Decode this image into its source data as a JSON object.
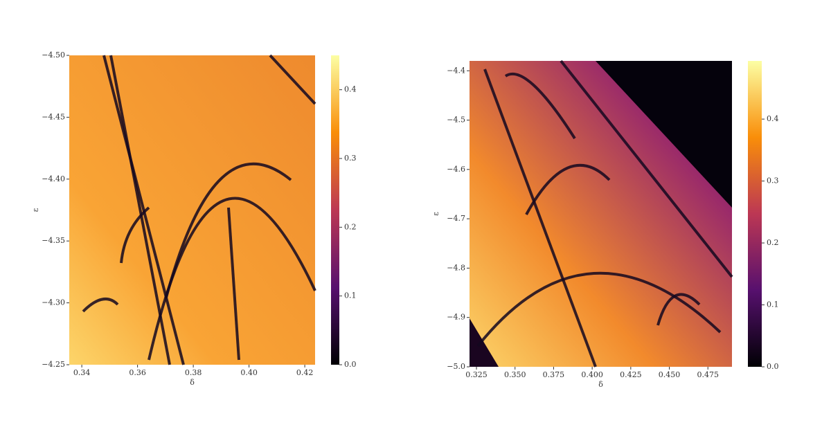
{
  "chart_data": [
    {
      "type": "heatmap",
      "xlabel": "δ",
      "ylabel": "ε",
      "colormap": "inferno",
      "xlim": [
        0.3355,
        0.4237
      ],
      "ylim": [
        -4.25,
        -4.5
      ],
      "xticks": [
        0.34,
        0.36,
        0.38,
        {
          "value": 0.4,
          "label": "0.40"
        },
        0.42
      ],
      "yticks": [
        {
          "value": -4.5,
          "label": "−4.50"
        },
        {
          "value": -4.45,
          "label": "−4.45"
        },
        {
          "value": -4.4,
          "label": "−4.40"
        },
        {
          "value": -4.35,
          "label": "−4.35"
        },
        {
          "value": -4.3,
          "label": "−4.30"
        },
        {
          "value": -4.25,
          "label": "−4.25"
        }
      ],
      "clim": [
        0,
        0.45
      ],
      "cticks": [
        {
          "value": 0,
          "label": "0.0"
        },
        0.1,
        0.2,
        0.3,
        0.4
      ]
    },
    {
      "type": "heatmap",
      "xlabel": "δ",
      "ylabel": "ε",
      "colormap": "inferno",
      "xlim": [
        0.3205,
        0.4906
      ],
      "ylim": [
        -5.0,
        -4.38
      ],
      "xticks": [
        0.325,
        {
          "value": 0.35,
          "label": "0.350"
        },
        0.375,
        {
          "value": 0.4,
          "label": "0.400"
        },
        0.425,
        {
          "value": 0.45,
          "label": "0.450"
        },
        0.475
      ],
      "yticks": [
        {
          "value": -4.4,
          "label": "−4.4"
        },
        {
          "value": -4.5,
          "label": "−4.5"
        },
        {
          "value": -4.6,
          "label": "−4.6"
        },
        {
          "value": -4.7,
          "label": "−4.7"
        },
        {
          "value": -4.8,
          "label": "−4.8"
        },
        {
          "value": -4.9,
          "label": "−4.9"
        },
        {
          "value": -5.0,
          "label": "−5.0"
        }
      ],
      "clim": [
        0,
        0.494
      ],
      "cticks": [
        {
          "value": 0,
          "label": "0.0"
        },
        0.1,
        0.2,
        0.3,
        0.4
      ]
    }
  ]
}
